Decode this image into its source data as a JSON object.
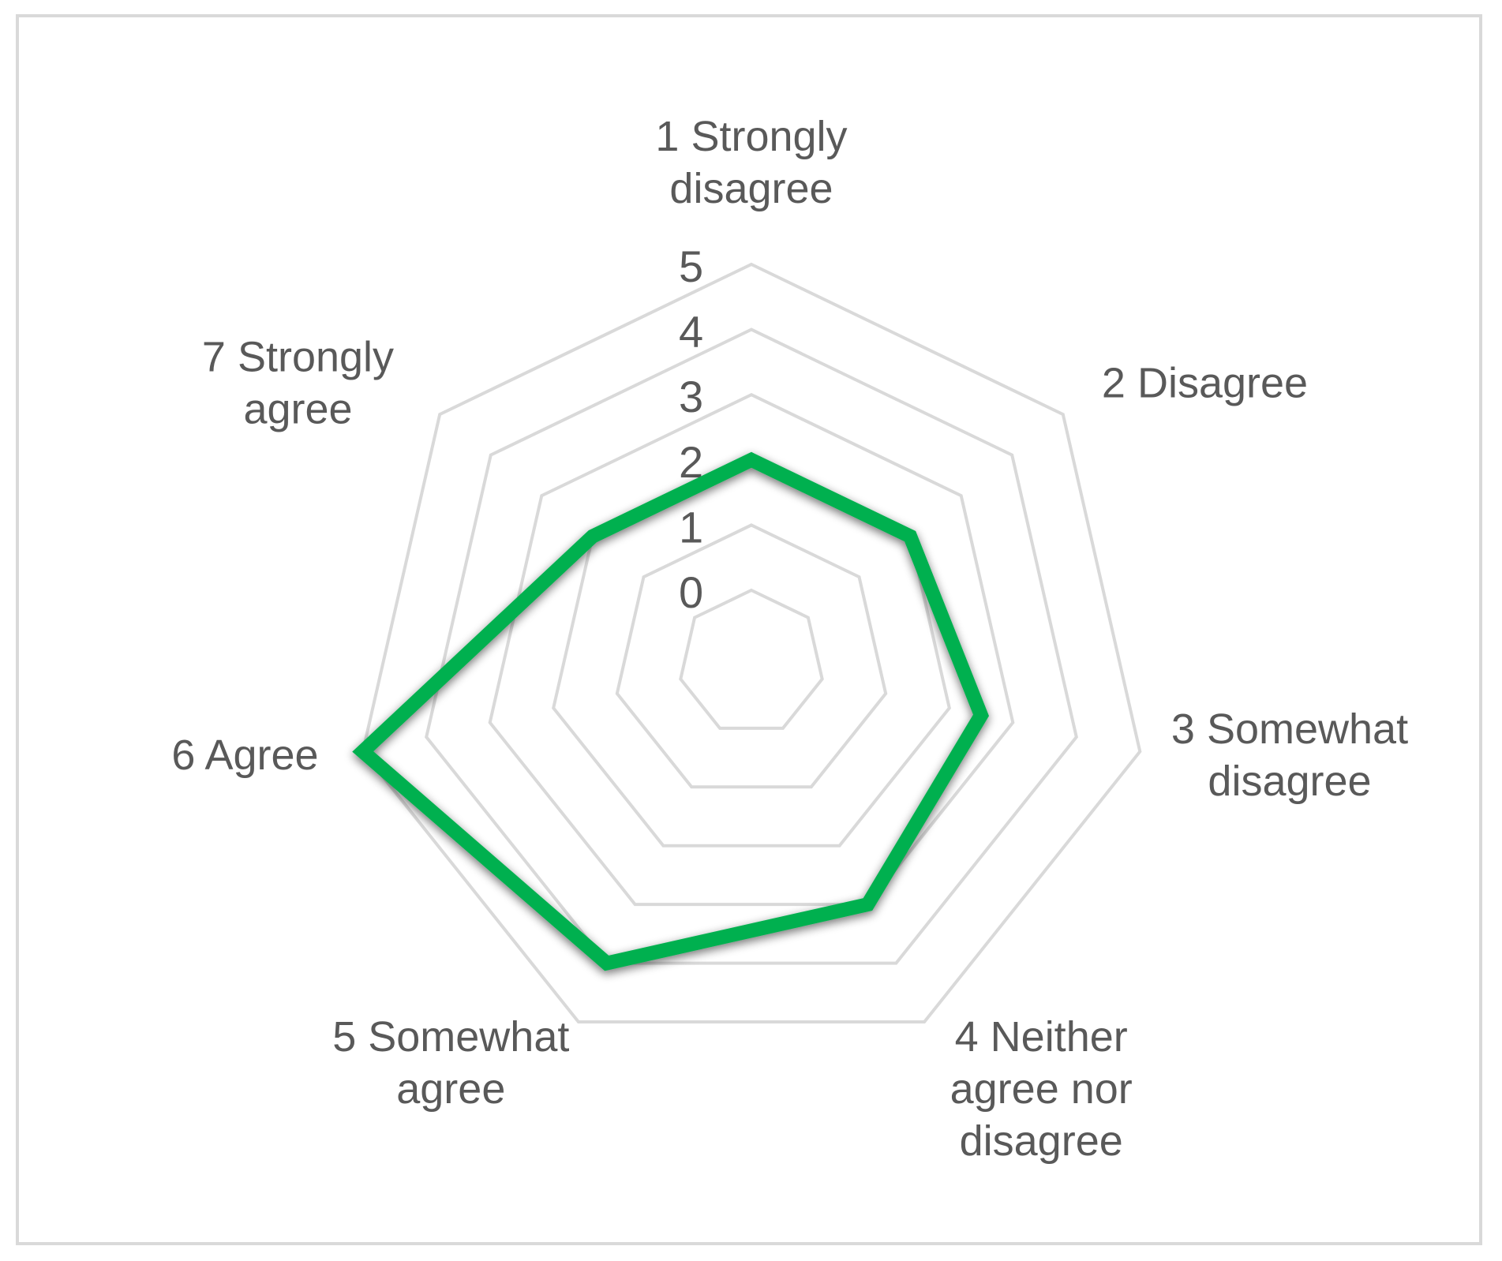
{
  "chart_data": {
    "type": "radar",
    "categories": [
      "1 Strongly disagree",
      "2 Disagree",
      "3 Somewhat disagree",
      "4 Neither agree nor disagree",
      "5 Somewhat agree",
      "6 Agree",
      "7 Strongly agree"
    ],
    "category_lines": [
      [
        "1 Strongly",
        "disagree"
      ],
      [
        "2 Disagree"
      ],
      [
        "3 Somewhat",
        "disagree"
      ],
      [
        "4 Neither",
        "agree nor",
        "disagree"
      ],
      [
        "5 Somewhat",
        "agree"
      ],
      [
        "6 Agree"
      ],
      [
        "7 Strongly",
        "agree"
      ]
    ],
    "series": [
      {
        "values": [
          2,
          2,
          2.5,
          3,
          4,
          5,
          2
        ],
        "color": "#00b050"
      }
    ],
    "ticks": [
      "0",
      "1",
      "2",
      "3",
      "4",
      "5"
    ],
    "rlim": [
      0,
      5
    ],
    "grid": true,
    "legend": "none",
    "grid_color": "#d9d9d9",
    "text_color": "#595959"
  }
}
